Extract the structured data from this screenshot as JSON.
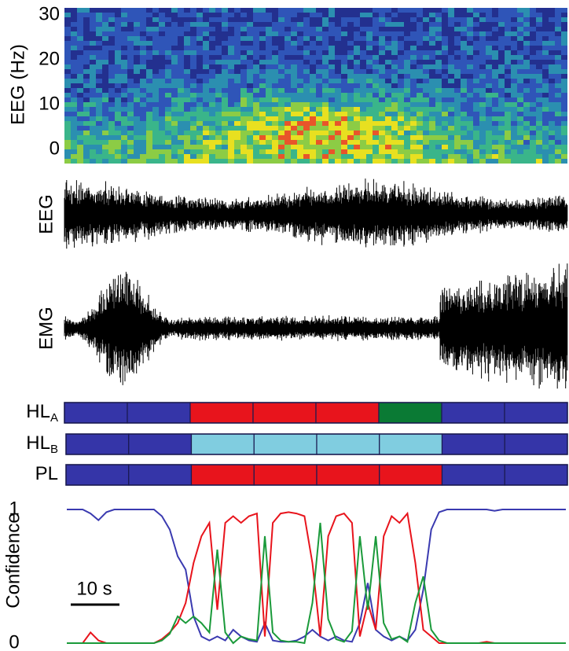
{
  "chart_data": [
    {
      "type": "heatmap",
      "y_label": "EEG (Hz)",
      "ylim": [
        -2.6,
        31.6
      ],
      "yticks": [
        0,
        10,
        20,
        30
      ]
    },
    {
      "type": "trace",
      "label": "EEG"
    },
    {
      "type": "trace",
      "label": "EMG"
    },
    {
      "type": "hypnogram",
      "rows": [
        {
          "label": "HL",
          "sub": "A",
          "colors": [
            "#3535a8",
            "#3535a8",
            "#e8141c",
            "#e8141c",
            "#e8141c",
            "#0a7a34",
            "#3535a8",
            "#3535a8"
          ]
        },
        {
          "label": "HL",
          "sub": "B",
          "colors": [
            "#3535a8",
            "#3535a8",
            "#80cde0",
            "#80cde0",
            "#80cde0",
            "#80cde0",
            "#3535a8",
            "#3535a8"
          ]
        },
        {
          "label": "PL",
          "colors": [
            "#3535a8",
            "#3535a8",
            "#e8141c",
            "#e8141c",
            "#e8141c",
            "#e8141c",
            "#3535a8",
            "#3535a8"
          ]
        }
      ]
    },
    {
      "type": "line",
      "y_label": "Confidence",
      "ylim": [
        0,
        1
      ],
      "yticks": [
        0,
        1
      ],
      "scale_bar_label": "10 s",
      "series": [
        {
          "color": "#3a3ab0",
          "values": [
            1,
            1,
            1,
            0.97,
            0.92,
            0.98,
            1,
            1,
            1,
            1,
            1,
            1,
            0.95,
            0.85,
            0.65,
            0.55,
            0.2,
            0.05,
            0.02,
            0.05,
            0.02,
            0.1,
            0.05,
            0.02,
            0.01,
            0.15,
            0.02,
            0.01,
            0.01,
            0.02,
            0.05,
            0.1,
            0.05,
            0.02,
            0.05,
            0.02,
            0.01,
            0.15,
            0.45,
            0.1,
            0.05,
            0.02,
            0.05,
            0.02,
            0.1,
            0.4,
            0.85,
            0.98,
            1,
            1,
            1,
            1,
            1,
            1,
            0.99,
            1,
            1,
            1,
            1,
            1,
            1,
            1,
            1,
            1
          ]
        },
        {
          "color": "#e8141c",
          "values": [
            0,
            0,
            0,
            0.08,
            0.02,
            0,
            0,
            0,
            0,
            0,
            0,
            0,
            0.03,
            0.08,
            0.15,
            0.3,
            0.6,
            0.8,
            0.9,
            0.25,
            0.9,
            0.95,
            0.9,
            0.95,
            0.97,
            0.05,
            0.9,
            0.97,
            0.98,
            0.97,
            0.95,
            0.6,
            0.05,
            0.8,
            0.95,
            0.97,
            0.9,
            0.05,
            0.3,
            0.1,
            0.8,
            0.95,
            0.9,
            0.97,
            0.6,
            0.1,
            0.05,
            0,
            0,
            0,
            0,
            0,
            0,
            0.01,
            0,
            0,
            0,
            0,
            0,
            0,
            0,
            0,
            0,
            0
          ]
        },
        {
          "color": "#1a9a3a",
          "values": [
            0,
            0,
            0,
            0,
            0,
            0,
            0,
            0,
            0,
            0,
            0,
            0,
            0.02,
            0.07,
            0.2,
            0.15,
            0.2,
            0.15,
            0.08,
            0.7,
            0.08,
            0,
            0.05,
            0.03,
            0.02,
            0.8,
            0.08,
            0.02,
            0.01,
            0.01,
            0,
            0.3,
            0.9,
            0.18,
            0.03,
            0.01,
            0.09,
            0.8,
            0.25,
            0.8,
            0.15,
            0.03,
            0.05,
            0.01,
            0.3,
            0.5,
            0.1,
            0.02,
            0,
            0,
            0,
            0,
            0,
            0,
            0,
            0,
            0,
            0,
            0,
            0,
            0,
            0,
            0,
            0
          ]
        }
      ]
    }
  ]
}
